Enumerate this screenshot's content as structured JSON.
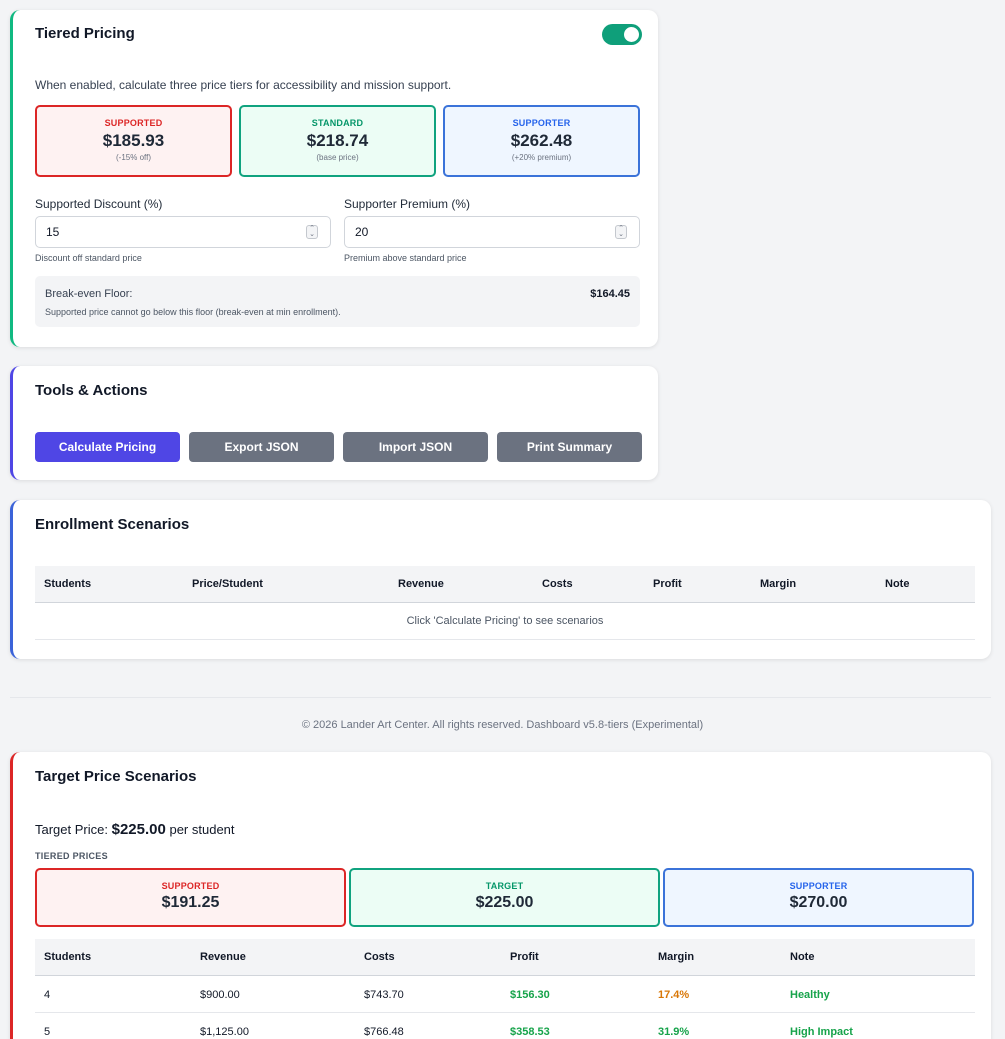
{
  "tiered": {
    "title": "Tiered Pricing",
    "enabled": true,
    "description": "When enabled, calculate three price tiers for accessibility and mission support.",
    "tiers": [
      {
        "label": "SUPPORTED",
        "price": "$185.93",
        "note": "(-15% off)"
      },
      {
        "label": "STANDARD",
        "price": "$218.74",
        "note": "(base price)"
      },
      {
        "label": "SUPPORTER",
        "price": "$262.48",
        "note": "(+20% premium)"
      }
    ],
    "discount": {
      "label": "Supported Discount (%)",
      "value": "15",
      "helper": "Discount off standard price"
    },
    "premium": {
      "label": "Supporter Premium (%)",
      "value": "20",
      "helper": "Premium above standard price"
    },
    "floor": {
      "label": "Break-even Floor:",
      "value": "$164.45",
      "note": "Supported price cannot go below this floor (break-even at min enrollment)."
    }
  },
  "tools": {
    "title": "Tools & Actions",
    "buttons": [
      "Calculate Pricing",
      "Export JSON",
      "Import JSON",
      "Print Summary"
    ]
  },
  "enrollment": {
    "title": "Enrollment Scenarios",
    "columns": [
      "Students",
      "Price/Student",
      "Revenue",
      "Costs",
      "Profit",
      "Margin",
      "Note"
    ],
    "empty_message": "Click 'Calculate Pricing' to see scenarios"
  },
  "footer": "© 2026 Lander Art Center. All rights reserved. Dashboard v5.8-tiers (Experimental)",
  "target": {
    "title": "Target Price Scenarios",
    "line_prefix": "Target Price:",
    "price": "$225.00",
    "line_suffix": "per student",
    "sub_label": "TIERED PRICES",
    "tiers": [
      {
        "label": "SUPPORTED",
        "price": "$191.25"
      },
      {
        "label": "TARGET",
        "price": "$225.00"
      },
      {
        "label": "SUPPORTER",
        "price": "$270.00"
      }
    ],
    "columns": [
      "Students",
      "Revenue",
      "Costs",
      "Profit",
      "Margin",
      "Note"
    ],
    "rows": [
      {
        "students": "4",
        "revenue": "$900.00",
        "costs": "$743.70",
        "profit": "$156.30",
        "margin": "17.4%",
        "note": "Healthy"
      },
      {
        "students": "5",
        "revenue": "$1,125.00",
        "costs": "$766.48",
        "profit": "$358.53",
        "margin": "31.9%",
        "note": "High Impact"
      }
    ]
  },
  "colors": {
    "supported": "#dc2626",
    "standard": "#10a37f",
    "supporter": "#3b73d9",
    "primary_button": "#4f46e5",
    "secondary_button": "#6b7280"
  }
}
